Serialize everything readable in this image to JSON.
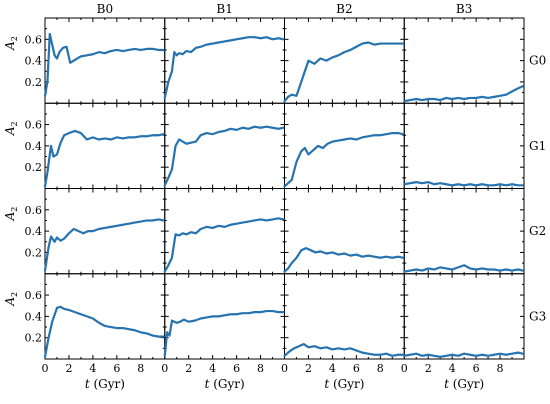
{
  "chart_data": {
    "type": "line",
    "layout": "grid",
    "columns": [
      "B0",
      "B1",
      "B2",
      "B3"
    ],
    "rows": [
      "G0",
      "G1",
      "G2",
      "G3"
    ],
    "xlabel_var": "t",
    "xlabel_unit": "(Gyr)",
    "ylabel_var": "A",
    "ylabel_sub": "2",
    "xlim": [
      0,
      10
    ],
    "ylim": [
      0,
      0.8
    ],
    "xticks": [
      0,
      2,
      4,
      6,
      8
    ],
    "yticks": [
      0.2,
      0.4,
      0.6
    ],
    "line_color": "#2673b0",
    "grid": false,
    "panels": [
      {
        "row": "G0",
        "col": "B0",
        "x": [
          0,
          0.2,
          0.4,
          0.6,
          0.8,
          1.0,
          1.2,
          1.5,
          1.8,
          2.1,
          2.4,
          2.7,
          3.0,
          3.5,
          4.0,
          4.5,
          5.0,
          5.5,
          6.0,
          6.5,
          7.0,
          7.5,
          8.0,
          8.5,
          9.0,
          9.5,
          9.9
        ],
        "y": [
          0.07,
          0.2,
          0.65,
          0.55,
          0.45,
          0.42,
          0.48,
          0.52,
          0.53,
          0.38,
          0.4,
          0.42,
          0.44,
          0.45,
          0.46,
          0.48,
          0.47,
          0.49,
          0.5,
          0.49,
          0.5,
          0.51,
          0.5,
          0.51,
          0.51,
          0.5,
          0.5
        ]
      },
      {
        "row": "G0",
        "col": "B1",
        "x": [
          0,
          0.3,
          0.6,
          0.8,
          1.0,
          1.2,
          1.5,
          1.8,
          2.2,
          2.6,
          3.0,
          3.5,
          4.0,
          4.5,
          5.0,
          5.5,
          6.0,
          6.5,
          7.0,
          7.5,
          8.0,
          8.5,
          9.0,
          9.5,
          9.9
        ],
        "y": [
          0.05,
          0.2,
          0.3,
          0.48,
          0.45,
          0.47,
          0.46,
          0.49,
          0.48,
          0.52,
          0.53,
          0.55,
          0.56,
          0.57,
          0.58,
          0.59,
          0.6,
          0.61,
          0.62,
          0.62,
          0.61,
          0.62,
          0.6,
          0.61,
          0.6
        ]
      },
      {
        "row": "G0",
        "col": "B2",
        "x": [
          0,
          0.3,
          0.6,
          1.0,
          1.4,
          1.7,
          2.0,
          2.5,
          3.0,
          3.5,
          4.0,
          4.5,
          5.0,
          5.5,
          6.0,
          6.5,
          7.0,
          7.5,
          8.0,
          8.5,
          9.0,
          9.5,
          9.9
        ],
        "y": [
          0.02,
          0.06,
          0.08,
          0.07,
          0.2,
          0.3,
          0.4,
          0.37,
          0.42,
          0.4,
          0.43,
          0.45,
          0.48,
          0.5,
          0.53,
          0.56,
          0.57,
          0.55,
          0.56,
          0.56,
          0.56,
          0.56,
          0.56
        ]
      },
      {
        "row": "G0",
        "col": "B3",
        "x": [
          0,
          0.5,
          1.0,
          1.5,
          2.0,
          2.5,
          3.0,
          3.5,
          4.0,
          4.5,
          5.0,
          5.5,
          6.0,
          6.5,
          7.0,
          7.5,
          8.0,
          8.5,
          9.0,
          9.5,
          9.9
        ],
        "y": [
          0.02,
          0.03,
          0.04,
          0.03,
          0.04,
          0.04,
          0.03,
          0.05,
          0.04,
          0.05,
          0.04,
          0.05,
          0.05,
          0.06,
          0.05,
          0.06,
          0.07,
          0.08,
          0.11,
          0.14,
          0.16
        ]
      },
      {
        "row": "G1",
        "col": "B0",
        "x": [
          0,
          0.2,
          0.5,
          0.7,
          1.0,
          1.3,
          1.6,
          2.0,
          2.5,
          3.0,
          3.5,
          4.0,
          4.5,
          5.0,
          5.5,
          6.0,
          6.5,
          7.0,
          7.5,
          8.0,
          8.5,
          9.0,
          9.5,
          9.9
        ],
        "y": [
          0.02,
          0.15,
          0.4,
          0.3,
          0.32,
          0.43,
          0.5,
          0.52,
          0.54,
          0.52,
          0.46,
          0.48,
          0.46,
          0.47,
          0.46,
          0.48,
          0.47,
          0.48,
          0.48,
          0.49,
          0.49,
          0.5,
          0.5,
          0.51
        ]
      },
      {
        "row": "G1",
        "col": "B1",
        "x": [
          0,
          0.3,
          0.6,
          0.9,
          1.2,
          1.5,
          1.8,
          2.2,
          2.6,
          3.0,
          3.5,
          4.0,
          4.5,
          5.0,
          5.5,
          6.0,
          6.5,
          7.0,
          7.5,
          8.0,
          8.5,
          9.0,
          9.5,
          9.9
        ],
        "y": [
          0.03,
          0.1,
          0.18,
          0.4,
          0.46,
          0.44,
          0.42,
          0.43,
          0.44,
          0.5,
          0.52,
          0.51,
          0.53,
          0.54,
          0.56,
          0.55,
          0.57,
          0.56,
          0.58,
          0.57,
          0.58,
          0.57,
          0.56,
          0.57
        ]
      },
      {
        "row": "G1",
        "col": "B2",
        "x": [
          0,
          0.3,
          0.6,
          1.0,
          1.4,
          1.7,
          2.0,
          2.4,
          2.8,
          3.2,
          3.6,
          4.0,
          4.5,
          5.0,
          5.5,
          6.0,
          6.5,
          7.0,
          7.5,
          8.0,
          8.5,
          9.0,
          9.5,
          9.9
        ],
        "y": [
          0.02,
          0.05,
          0.08,
          0.25,
          0.35,
          0.38,
          0.32,
          0.36,
          0.4,
          0.38,
          0.42,
          0.44,
          0.45,
          0.46,
          0.47,
          0.46,
          0.48,
          0.49,
          0.5,
          0.5,
          0.51,
          0.52,
          0.52,
          0.51
        ]
      },
      {
        "row": "G1",
        "col": "B3",
        "x": [
          0,
          0.5,
          1.0,
          1.5,
          2.0,
          2.5,
          3.0,
          3.5,
          4.0,
          4.5,
          5.0,
          5.5,
          6.0,
          6.5,
          7.0,
          7.5,
          8.0,
          8.5,
          9.0,
          9.5,
          9.9
        ],
        "y": [
          0.04,
          0.05,
          0.06,
          0.05,
          0.06,
          0.04,
          0.05,
          0.04,
          0.03,
          0.04,
          0.03,
          0.04,
          0.03,
          0.04,
          0.03,
          0.03,
          0.04,
          0.03,
          0.04,
          0.03,
          0.03
        ]
      },
      {
        "row": "G2",
        "col": "B0",
        "x": [
          0,
          0.3,
          0.5,
          0.8,
          1.0,
          1.3,
          1.6,
          2.0,
          2.4,
          2.8,
          3.2,
          3.6,
          4.0,
          4.5,
          5.0,
          5.5,
          6.0,
          6.5,
          7.0,
          7.5,
          8.0,
          8.5,
          9.0,
          9.5,
          9.9
        ],
        "y": [
          0.03,
          0.25,
          0.35,
          0.3,
          0.34,
          0.31,
          0.33,
          0.38,
          0.42,
          0.4,
          0.38,
          0.4,
          0.4,
          0.42,
          0.43,
          0.44,
          0.45,
          0.46,
          0.47,
          0.48,
          0.49,
          0.5,
          0.5,
          0.51,
          0.5
        ]
      },
      {
        "row": "G2",
        "col": "B1",
        "x": [
          0,
          0.3,
          0.6,
          0.9,
          1.2,
          1.5,
          1.8,
          2.2,
          2.6,
          3.0,
          3.5,
          4.0,
          4.5,
          5.0,
          5.5,
          6.0,
          6.5,
          7.0,
          7.5,
          8.0,
          8.5,
          9.0,
          9.5,
          9.9
        ],
        "y": [
          0.02,
          0.08,
          0.15,
          0.37,
          0.36,
          0.38,
          0.37,
          0.39,
          0.38,
          0.42,
          0.44,
          0.43,
          0.45,
          0.44,
          0.46,
          0.47,
          0.48,
          0.49,
          0.5,
          0.51,
          0.5,
          0.51,
          0.52,
          0.51
        ]
      },
      {
        "row": "G2",
        "col": "B2",
        "x": [
          0,
          0.3,
          0.6,
          1.0,
          1.4,
          1.8,
          2.2,
          2.6,
          3.0,
          3.5,
          4.0,
          4.5,
          5.0,
          5.5,
          6.0,
          6.5,
          7.0,
          7.5,
          8.0,
          8.5,
          9.0,
          9.5,
          9.9
        ],
        "y": [
          0.02,
          0.05,
          0.1,
          0.15,
          0.22,
          0.24,
          0.22,
          0.2,
          0.21,
          0.19,
          0.2,
          0.18,
          0.19,
          0.17,
          0.18,
          0.16,
          0.17,
          0.16,
          0.15,
          0.16,
          0.15,
          0.16,
          0.15
        ]
      },
      {
        "row": "G2",
        "col": "B3",
        "x": [
          0,
          0.5,
          1.0,
          1.5,
          2.0,
          2.5,
          3.0,
          3.5,
          4.0,
          4.5,
          5.0,
          5.5,
          6.0,
          6.5,
          7.0,
          7.5,
          8.0,
          8.5,
          9.0,
          9.5,
          9.9
        ],
        "y": [
          0.02,
          0.03,
          0.04,
          0.03,
          0.05,
          0.04,
          0.06,
          0.05,
          0.04,
          0.06,
          0.08,
          0.05,
          0.04,
          0.05,
          0.04,
          0.04,
          0.03,
          0.04,
          0.03,
          0.04,
          0.03
        ]
      },
      {
        "row": "G3",
        "col": "B0",
        "x": [
          0,
          0.3,
          0.6,
          1.0,
          1.3,
          1.6,
          2.0,
          2.5,
          3.0,
          3.5,
          4.0,
          4.5,
          5.0,
          5.5,
          6.0,
          6.5,
          7.0,
          7.5,
          8.0,
          8.5,
          9.0,
          9.5,
          9.9
        ],
        "y": [
          0.02,
          0.2,
          0.35,
          0.48,
          0.49,
          0.47,
          0.46,
          0.44,
          0.42,
          0.4,
          0.38,
          0.34,
          0.31,
          0.3,
          0.29,
          0.29,
          0.28,
          0.27,
          0.25,
          0.24,
          0.22,
          0.21,
          0.21
        ]
      },
      {
        "row": "G3",
        "col": "B1",
        "x": [
          0,
          0.2,
          0.4,
          0.6,
          0.8,
          1.0,
          1.3,
          1.6,
          2.0,
          2.5,
          3.0,
          3.5,
          4.0,
          4.5,
          5.0,
          5.5,
          6.0,
          6.5,
          7.0,
          7.5,
          8.0,
          8.5,
          9.0,
          9.5,
          9.9
        ],
        "y": [
          0.03,
          0.25,
          0.22,
          0.36,
          0.35,
          0.34,
          0.35,
          0.37,
          0.35,
          0.36,
          0.38,
          0.39,
          0.4,
          0.4,
          0.41,
          0.42,
          0.42,
          0.43,
          0.43,
          0.44,
          0.44,
          0.45,
          0.45,
          0.44,
          0.44
        ]
      },
      {
        "row": "G3",
        "col": "B2",
        "x": [
          0,
          0.4,
          0.8,
          1.2,
          1.6,
          2.0,
          2.5,
          3.0,
          3.5,
          4.0,
          4.5,
          5.0,
          5.5,
          6.0,
          6.5,
          7.0,
          7.5,
          8.0,
          8.5,
          9.0,
          9.5,
          9.9
        ],
        "y": [
          0.03,
          0.07,
          0.1,
          0.12,
          0.14,
          0.11,
          0.12,
          0.1,
          0.11,
          0.09,
          0.1,
          0.09,
          0.1,
          0.08,
          0.06,
          0.05,
          0.04,
          0.04,
          0.05,
          0.03,
          0.04,
          0.04
        ]
      },
      {
        "row": "G3",
        "col": "B3",
        "x": [
          0,
          0.5,
          1.0,
          1.5,
          2.0,
          2.5,
          3.0,
          3.5,
          4.0,
          4.5,
          5.0,
          5.5,
          6.0,
          6.5,
          7.0,
          7.5,
          8.0,
          8.5,
          9.0,
          9.5,
          9.9
        ],
        "y": [
          0.03,
          0.04,
          0.05,
          0.03,
          0.04,
          0.03,
          0.02,
          0.03,
          0.04,
          0.03,
          0.05,
          0.04,
          0.03,
          0.04,
          0.03,
          0.04,
          0.05,
          0.04,
          0.05,
          0.06,
          0.05
        ]
      }
    ]
  }
}
